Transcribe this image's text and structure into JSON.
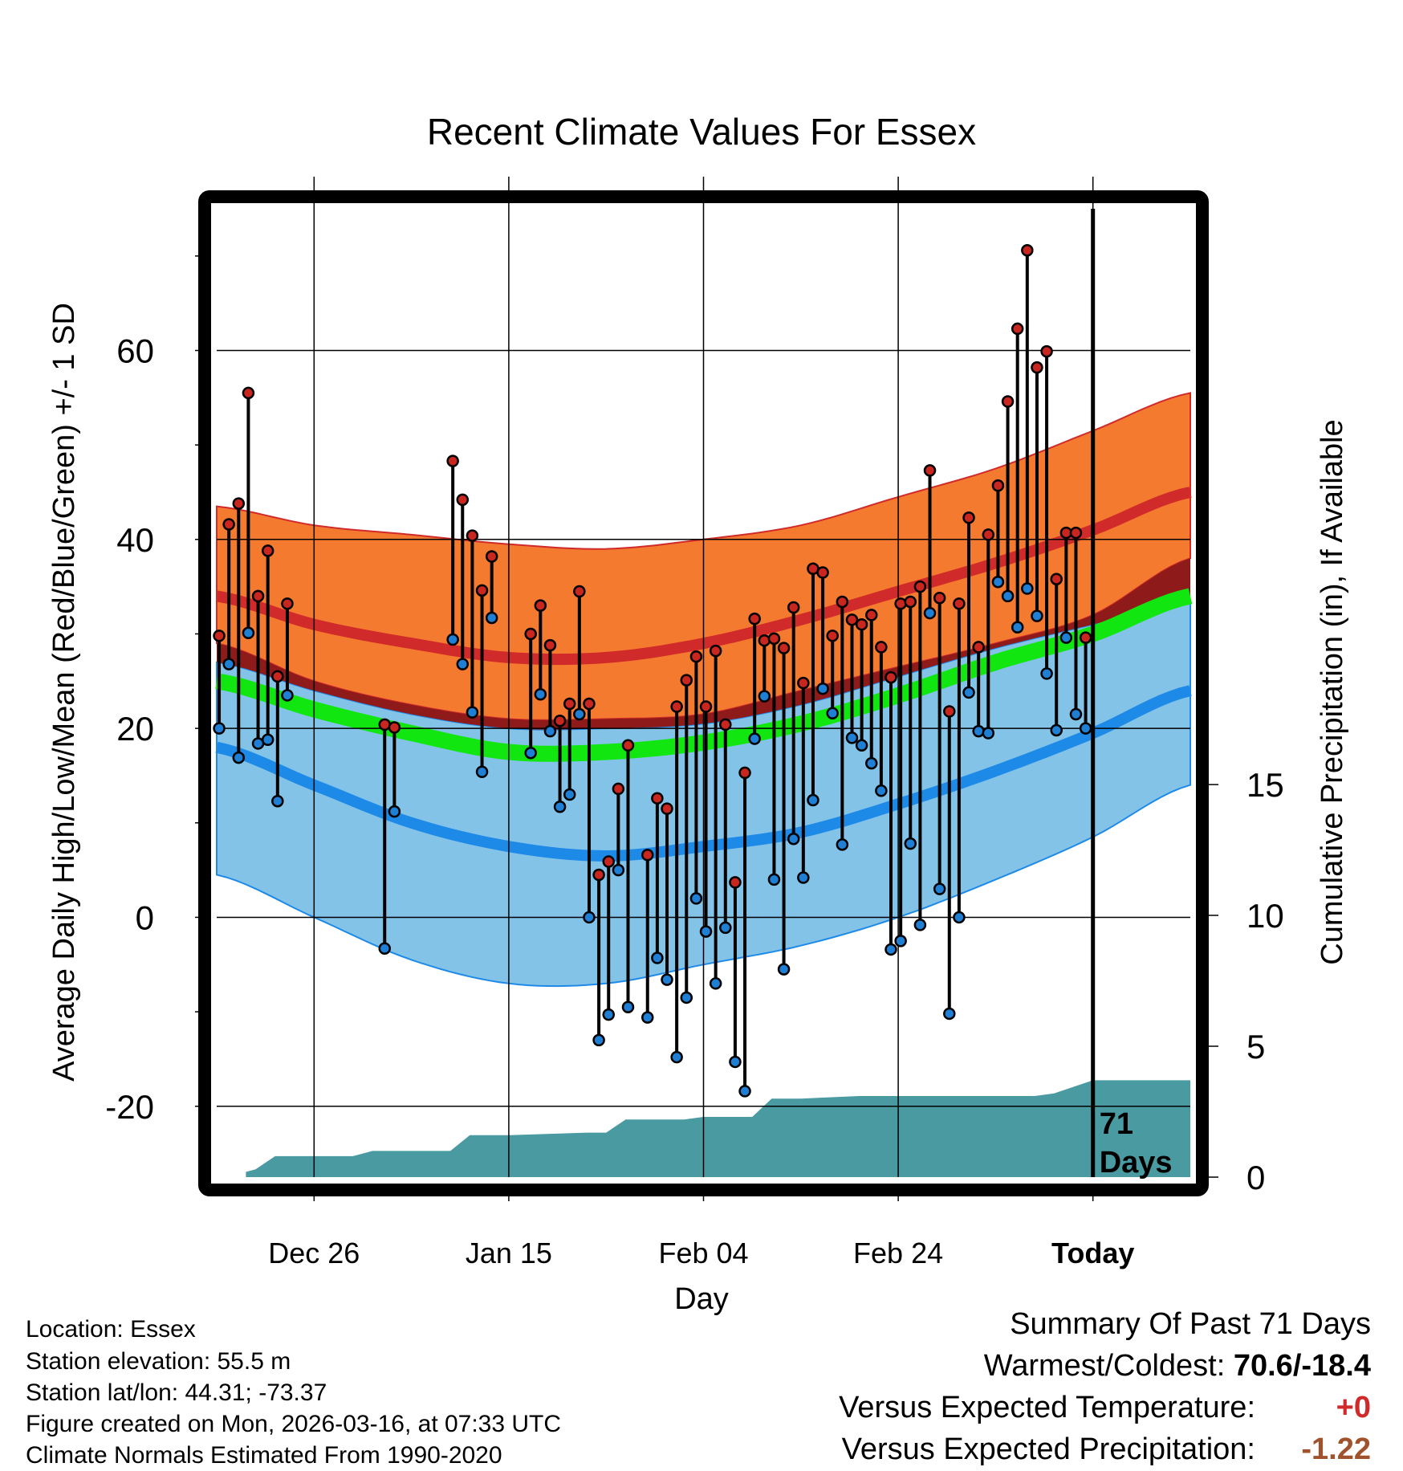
{
  "chart_data": {
    "type": "line",
    "title": "Recent Climate Values For Essex",
    "xlabel": "Day",
    "ylabel": "Average Daily High/Low/Mean (Red/Blue/Green) +/- 1 SD",
    "y2label": "Cumulative Precipitation (in), If Available",
    "x_range_days": [
      0,
      100
    ],
    "ylim": [
      -27.5,
      75
    ],
    "yticks": [
      -20,
      0,
      20,
      40,
      60
    ],
    "y2ticks": [
      0,
      5,
      10,
      15
    ],
    "y2lim": [
      0,
      37
    ],
    "xticks": [
      {
        "day": 10,
        "label": "Dec 26"
      },
      {
        "day": 30,
        "label": "Jan 15"
      },
      {
        "day": 50,
        "label": "Feb 04"
      },
      {
        "day": 70,
        "label": "Feb 24"
      },
      {
        "day": 90,
        "label": "Today"
      }
    ],
    "today_day": 90,
    "today_annotation": "71\nDays",
    "normals": {
      "days": [
        0,
        10,
        20,
        30,
        40,
        50,
        60,
        70,
        80,
        90,
        100
      ],
      "high_mean": [
        34,
        31,
        29,
        27.5,
        27.5,
        29,
        31.5,
        34.5,
        37.5,
        41,
        45
      ],
      "high_upper": [
        43.5,
        41.5,
        40.5,
        39.5,
        39,
        40,
        41.5,
        44.5,
        47.5,
        51.5,
        55.5
      ],
      "high_lower": [
        29,
        25,
        22.5,
        21,
        21,
        21.5,
        24,
        26.5,
        29,
        32,
        38
      ],
      "low_mean": [
        18,
        14,
        10,
        7.5,
        6.5,
        7.5,
        9,
        12,
        15.5,
        19.5,
        24
      ],
      "low_upper": [
        27,
        24,
        21.5,
        20,
        20,
        20.5,
        22.5,
        25.5,
        28.5,
        31,
        33.5
      ],
      "low_lower": [
        4.5,
        0,
        -4.5,
        -7,
        -7,
        -5,
        -3,
        0,
        4,
        8.5,
        14
      ],
      "mean_avg": [
        25,
        22,
        19.5,
        17.5,
        17.5,
        18.5,
        20.5,
        23.5,
        27,
        30,
        34
      ]
    },
    "observed": {
      "days": [
        0,
        1,
        2,
        3,
        4,
        5,
        6,
        7,
        17,
        18,
        24,
        25,
        26,
        27,
        28,
        32,
        33,
        34,
        35,
        36,
        37,
        38,
        39,
        40,
        41,
        42,
        44,
        45,
        46,
        47,
        48,
        49,
        50,
        51,
        52,
        53,
        54,
        55,
        56,
        57,
        58,
        59,
        60,
        61,
        62,
        63,
        64,
        65,
        66,
        67,
        68,
        69,
        70,
        71,
        72,
        73,
        74,
        75,
        76,
        77,
        78,
        79,
        80,
        81,
        82,
        83,
        84,
        85,
        86,
        87,
        88,
        89
      ],
      "high": [
        29.8,
        41.6,
        43.8,
        55.5,
        34.0,
        38.8,
        25.5,
        33.2,
        20.4,
        20.1,
        48.3,
        44.2,
        40.4,
        34.6,
        38.2,
        30.0,
        33.0,
        28.8,
        20.8,
        22.6,
        34.5,
        22.6,
        4.5,
        5.9,
        13.6,
        18.2,
        6.6,
        12.6,
        11.5,
        22.3,
        25.1,
        27.6,
        22.3,
        28.2,
        20.4,
        3.7,
        15.3,
        31.6,
        29.3,
        29.5,
        28.5,
        32.8,
        24.8,
        36.9,
        36.5,
        29.8,
        33.4,
        31.5,
        31.0,
        32.0,
        28.6,
        25.4,
        33.2,
        33.4,
        35.0,
        47.3,
        33.8,
        21.8,
        33.2,
        42.3,
        28.6,
        40.5,
        45.7,
        54.6,
        62.3,
        70.6,
        58.2,
        59.9,
        35.8,
        40.7,
        40.7,
        29.6
      ],
      "low": [
        20.0,
        26.8,
        16.9,
        30.1,
        18.4,
        18.8,
        12.3,
        23.5,
        -3.3,
        11.2,
        29.4,
        26.8,
        21.7,
        15.4,
        31.7,
        17.4,
        23.6,
        19.7,
        11.7,
        13.0,
        21.5,
        0.0,
        -13.0,
        -10.3,
        5.0,
        -9.5,
        -10.6,
        -4.3,
        -6.6,
        -14.8,
        -8.5,
        2.0,
        -1.5,
        -7.0,
        -1.1,
        -15.3,
        -18.4,
        18.9,
        23.4,
        4.0,
        -5.5,
        8.3,
        4.2,
        12.4,
        24.2,
        21.6,
        7.7,
        19.0,
        18.2,
        16.3,
        13.4,
        -3.4,
        -2.5,
        7.8,
        -0.8,
        32.2,
        3.0,
        -10.2,
        0.0,
        23.8,
        19.7,
        19.5,
        35.5,
        34.0,
        30.7,
        34.8,
        31.9,
        25.8,
        19.8,
        29.6,
        21.5,
        20.0
      ]
    },
    "precip_cumulative": {
      "days": [
        3,
        4,
        6,
        14,
        16,
        24,
        26,
        30,
        38,
        40,
        42,
        48,
        50,
        52,
        55,
        57,
        60,
        66,
        68,
        70,
        76,
        84,
        86,
        90,
        100
      ],
      "values": [
        0.2,
        0.3,
        0.8,
        0.8,
        1.0,
        1.0,
        1.6,
        1.6,
        1.7,
        1.7,
        2.2,
        2.2,
        2.3,
        2.3,
        2.3,
        3.0,
        3.0,
        3.1,
        3.1,
        3.1,
        3.1,
        3.1,
        3.2,
        3.7,
        3.7
      ]
    }
  },
  "footer": {
    "location": "Location: Essex",
    "elevation": "Station elevation: 55.5 m",
    "latlon": "Station lat/lon: 44.31; -73.37",
    "created": "Figure created on Mon, 2026-03-16, at 07:33 UTC",
    "normals": "Climate Normals Estimated From 1990-2020"
  },
  "summary": {
    "title": "Summary Of Past 71 Days",
    "warm_cold_label": "Warmest/Coldest: ",
    "warm_cold_value": "70.6/-18.4",
    "temp_label": "Versus Expected Temperature:",
    "temp_value": "+0",
    "precip_label": "Versus Expected Precipitation:",
    "precip_value": "-1.22"
  },
  "colors": {
    "high_band": "#f47a2f",
    "high_mean_line": "#d12a2a",
    "low_band": "#84c3e8",
    "low_mean_line": "#1e8ae8",
    "mean_line": "#11e611",
    "overlap_band": "#8e1a1a",
    "precip_fill": "#4a9aa2",
    "high_marker": "#c8261f",
    "low_marker": "#1e7fd4"
  }
}
